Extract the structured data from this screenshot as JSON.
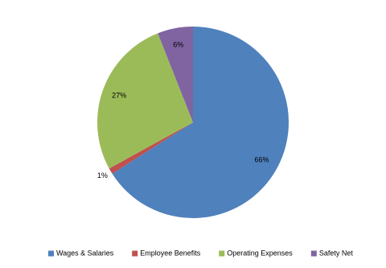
{
  "chart_data": {
    "type": "pie",
    "categories": [
      "Wages & Salaries",
      "Employee Benefits",
      "Operating Expenses",
      "Safety Net"
    ],
    "values": [
      66,
      1,
      27,
      6
    ],
    "value_labels": [
      "66%",
      "1%",
      "27%",
      "6%"
    ],
    "colors": [
      "#4f81bd",
      "#c0504d",
      "#9bbb59",
      "#8064a2"
    ],
    "legend": "bottom"
  }
}
